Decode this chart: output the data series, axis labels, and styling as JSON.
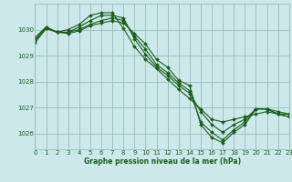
{
  "background_color": "#cce8ea",
  "grid_color": "#99bbbb",
  "line_color": "#1a5c1a",
  "xlabel": "Graphe pression niveau de la mer (hPa)",
  "ylim": [
    1025.4,
    1031.0
  ],
  "xlim": [
    0,
    23
  ],
  "yticks": [
    1026,
    1027,
    1028,
    1029,
    1030
  ],
  "xticks": [
    0,
    1,
    2,
    3,
    4,
    5,
    6,
    7,
    8,
    9,
    10,
    11,
    12,
    13,
    14,
    15,
    16,
    17,
    18,
    19,
    20,
    21,
    22,
    23
  ],
  "series": [
    {
      "x": [
        0,
        1,
        2,
        3,
        4,
        5,
        6,
        7,
        8,
        9,
        10,
        11,
        12,
        13,
        14,
        15,
        16,
        17,
        18,
        19,
        20,
        21,
        22,
        23
      ],
      "y": [
        1029.7,
        1030.1,
        1029.9,
        1030.0,
        1030.2,
        1030.55,
        1030.65,
        1030.65,
        1030.05,
        1029.35,
        1028.85,
        1028.5,
        1028.1,
        1027.7,
        1027.35,
        1026.95,
        1026.55,
        1026.45,
        1026.55,
        1026.65,
        1026.75,
        1026.85,
        1026.75,
        1026.75
      ]
    },
    {
      "x": [
        0,
        1,
        2,
        3,
        4,
        5,
        6,
        7,
        8,
        9,
        10,
        11,
        12,
        13,
        14,
        15,
        16,
        17,
        18,
        19,
        20,
        21,
        22,
        23
      ],
      "y": [
        1029.6,
        1030.1,
        1029.9,
        1029.9,
        1030.1,
        1030.35,
        1030.55,
        1030.55,
        1030.45,
        1029.65,
        1029.05,
        1028.55,
        1028.25,
        1027.85,
        1027.55,
        1026.85,
        1026.35,
        1026.05,
        1026.35,
        1026.55,
        1026.95,
        1026.95,
        1026.85,
        1026.75
      ]
    },
    {
      "x": [
        0,
        1,
        2,
        3,
        4,
        5,
        6,
        7,
        8,
        9,
        10,
        11,
        12,
        13,
        14,
        15,
        16,
        17,
        18,
        19,
        20,
        21,
        22,
        23
      ],
      "y": [
        1029.55,
        1030.05,
        1029.9,
        1029.9,
        1030.0,
        1030.2,
        1030.35,
        1030.45,
        1030.35,
        1029.75,
        1029.25,
        1028.65,
        1028.35,
        1027.95,
        1027.65,
        1026.45,
        1026.05,
        1025.75,
        1026.15,
        1026.45,
        1026.95,
        1026.95,
        1026.75,
        1026.65
      ]
    },
    {
      "x": [
        0,
        1,
        2,
        3,
        4,
        5,
        6,
        7,
        8,
        9,
        10,
        11,
        12,
        13,
        14,
        15,
        16,
        17,
        18,
        19,
        20,
        21,
        22,
        23
      ],
      "y": [
        1029.5,
        1030.05,
        1029.9,
        1029.85,
        1029.95,
        1030.15,
        1030.25,
        1030.35,
        1030.25,
        1029.85,
        1029.45,
        1028.85,
        1028.55,
        1028.05,
        1027.85,
        1026.35,
        1025.85,
        1025.65,
        1026.05,
        1026.35,
        1026.95,
        1026.95,
        1026.75,
        1026.65
      ]
    }
  ]
}
